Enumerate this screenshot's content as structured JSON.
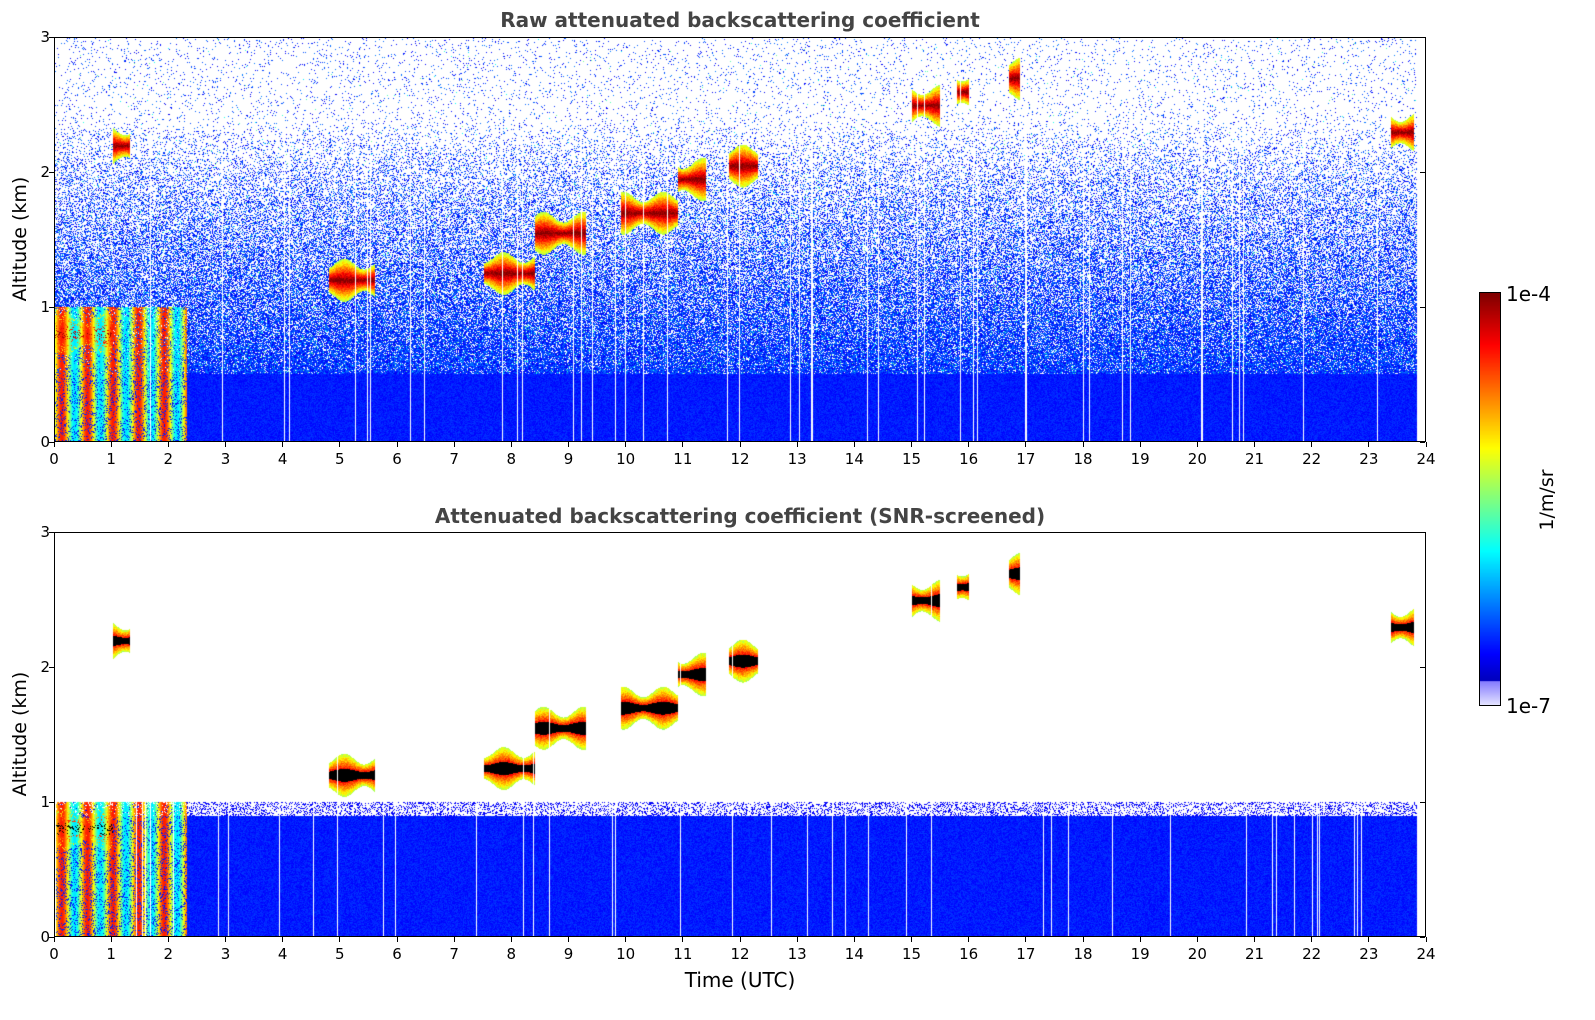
{
  "chart_data": [
    {
      "type": "heatmap",
      "title": "Raw attenuated backscattering coefficient",
      "xlabel": "",
      "ylabel": "Altitude (km)",
      "xlim": [
        0,
        24
      ],
      "ylim": [
        0,
        3
      ],
      "x_ticks": [
        "0",
        "1",
        "2",
        "3",
        "4",
        "5",
        "6",
        "7",
        "8",
        "9",
        "10",
        "11",
        "12",
        "13",
        "14",
        "15",
        "16",
        "17",
        "18",
        "19",
        "20",
        "21",
        "22",
        "23",
        "24"
      ],
      "y_ticks": [
        "0",
        "1",
        "2",
        "3"
      ],
      "screened": false,
      "features": [
        {
          "kind": "boundary_layer_top_km",
          "value": 0.5
        },
        {
          "kind": "cloud",
          "t_start": 0.0,
          "t_end": 1.0,
          "alt_km": 0.8
        },
        {
          "kind": "cloud",
          "t_start": 1.0,
          "t_end": 1.3,
          "alt_km": 2.2
        },
        {
          "kind": "cloud",
          "t_start": 4.8,
          "t_end": 5.6,
          "alt_km": 1.2
        },
        {
          "kind": "cloud",
          "t_start": 7.5,
          "t_end": 8.4,
          "alt_km": 1.25
        },
        {
          "kind": "cloud",
          "t_start": 8.4,
          "t_end": 9.3,
          "alt_km": 1.55
        },
        {
          "kind": "cloud",
          "t_start": 9.9,
          "t_end": 10.9,
          "alt_km": 1.7
        },
        {
          "kind": "cloud",
          "t_start": 10.9,
          "t_end": 11.4,
          "alt_km": 1.95
        },
        {
          "kind": "cloud",
          "t_start": 11.8,
          "t_end": 12.3,
          "alt_km": 2.05
        },
        {
          "kind": "cloud",
          "t_start": 15.0,
          "t_end": 15.5,
          "alt_km": 2.5
        },
        {
          "kind": "cloud",
          "t_start": 15.8,
          "t_end": 16.0,
          "alt_km": 2.6
        },
        {
          "kind": "cloud",
          "t_start": 16.7,
          "t_end": 16.9,
          "alt_km": 2.7
        },
        {
          "kind": "cloud",
          "t_start": 23.4,
          "t_end": 23.8,
          "alt_km": 2.3
        }
      ]
    },
    {
      "type": "heatmap",
      "title": "Attenuated backscattering coefficient (SNR-screened)",
      "xlabel": "Time (UTC)",
      "ylabel": "Altitude (km)",
      "xlim": [
        0,
        24
      ],
      "ylim": [
        0,
        3
      ],
      "x_ticks": [
        "0",
        "1",
        "2",
        "3",
        "4",
        "5",
        "6",
        "7",
        "8",
        "9",
        "10",
        "11",
        "12",
        "13",
        "14",
        "15",
        "16",
        "17",
        "18",
        "19",
        "20",
        "21",
        "22",
        "23",
        "24"
      ],
      "y_ticks": [
        "0",
        "1",
        "2",
        "3"
      ],
      "screened": true,
      "features": [
        {
          "kind": "boundary_layer_top_km",
          "value": 0.9
        },
        {
          "kind": "cloud",
          "t_start": 0.0,
          "t_end": 1.0,
          "alt_km": 0.8
        },
        {
          "kind": "cloud",
          "t_start": 1.0,
          "t_end": 1.3,
          "alt_km": 2.2
        },
        {
          "kind": "cloud",
          "t_start": 4.8,
          "t_end": 5.6,
          "alt_km": 1.2
        },
        {
          "kind": "cloud",
          "t_start": 7.5,
          "t_end": 8.4,
          "alt_km": 1.25
        },
        {
          "kind": "cloud",
          "t_start": 8.4,
          "t_end": 9.3,
          "alt_km": 1.55
        },
        {
          "kind": "cloud",
          "t_start": 9.9,
          "t_end": 10.9,
          "alt_km": 1.7
        },
        {
          "kind": "cloud",
          "t_start": 10.9,
          "t_end": 11.4,
          "alt_km": 1.95
        },
        {
          "kind": "cloud",
          "t_start": 11.8,
          "t_end": 12.3,
          "alt_km": 2.05
        },
        {
          "kind": "cloud",
          "t_start": 15.0,
          "t_end": 15.5,
          "alt_km": 2.5
        },
        {
          "kind": "cloud",
          "t_start": 15.8,
          "t_end": 16.0,
          "alt_km": 2.6
        },
        {
          "kind": "cloud",
          "t_start": 16.7,
          "t_end": 16.9,
          "alt_km": 2.7
        },
        {
          "kind": "cloud",
          "t_start": 23.4,
          "t_end": 23.8,
          "alt_km": 2.3
        }
      ]
    }
  ],
  "colorbar": {
    "max_label": "1e-4",
    "min_label": "1e-7",
    "unit": "1/m/sr",
    "colormap": "jet",
    "scale": "log",
    "range": [
      1e-07,
      0.0001
    ]
  }
}
